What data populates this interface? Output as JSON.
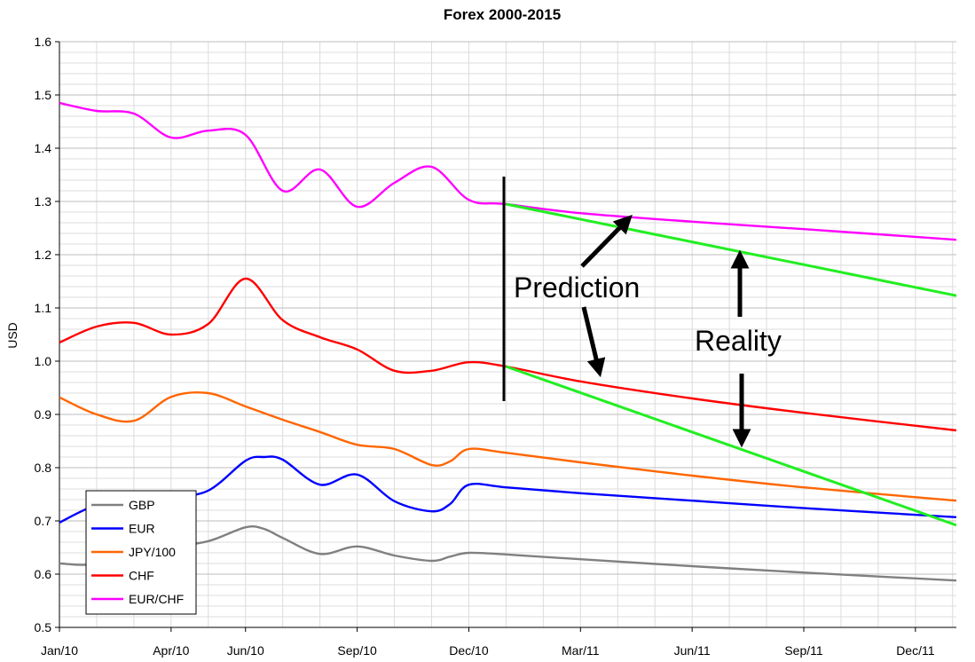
{
  "chart_data": {
    "type": "line",
    "title": "Forex 2000-2015",
    "ylabel": "USD",
    "xlabel": "",
    "ylim": [
      0.5,
      1.6
    ],
    "yticks": [
      "0.5",
      "0.6",
      "0.7",
      "0.8",
      "0.9",
      "1.0",
      "1.1",
      "1.2",
      "1.3",
      "1.4",
      "1.5",
      "1.6"
    ],
    "x_tick_labels": [
      "Jan/10",
      "Apr/10",
      "Jun/10",
      "Sep/10",
      "Dec/10",
      "Mar/11",
      "Jun/11",
      "Sep/11",
      "Dec/11"
    ],
    "x_tick_months": [
      0,
      3,
      5,
      8,
      11,
      14,
      17,
      20,
      23
    ],
    "xlim_months": [
      0,
      24.1
    ],
    "grid": true,
    "legend_position": "bottom-left",
    "series": [
      {
        "name": "GBP",
        "color": "#808080",
        "x": [
          0,
          1,
          2,
          3,
          4,
          5,
          5.5,
          6,
          7,
          8,
          9,
          10,
          10.5,
          11,
          12,
          14,
          17,
          20,
          24.1
        ],
        "values": [
          0.62,
          0.62,
          0.655,
          0.653,
          0.662,
          0.688,
          0.685,
          0.668,
          0.638,
          0.652,
          0.635,
          0.625,
          0.633,
          0.64,
          0.637,
          0.628,
          0.615,
          0.603,
          0.588
        ]
      },
      {
        "name": "EUR",
        "color": "#0000ff",
        "x": [
          0,
          1,
          2,
          3,
          4,
          5,
          5.5,
          6,
          7,
          8,
          9,
          10,
          10.5,
          11,
          12,
          14,
          17,
          20,
          24.1
        ],
        "values": [
          0.697,
          0.73,
          0.74,
          0.745,
          0.757,
          0.813,
          0.82,
          0.815,
          0.768,
          0.787,
          0.737,
          0.718,
          0.732,
          0.768,
          0.763,
          0.752,
          0.738,
          0.724,
          0.707
        ]
      },
      {
        "name": "JPY/100",
        "color": "#ff6600",
        "x": [
          0,
          1,
          2,
          3,
          4,
          5,
          6,
          7,
          8,
          9,
          10,
          10.5,
          11,
          12,
          14,
          17,
          20,
          24.1
        ],
        "values": [
          0.932,
          0.9,
          0.888,
          0.933,
          0.94,
          0.915,
          0.89,
          0.867,
          0.843,
          0.835,
          0.805,
          0.812,
          0.835,
          0.828,
          0.81,
          0.785,
          0.763,
          0.738
        ]
      },
      {
        "name": "CHF",
        "color": "#ff0000",
        "x": [
          0,
          1,
          2,
          3,
          4,
          5,
          6,
          7,
          8,
          9,
          10,
          11,
          12,
          14,
          17,
          20,
          24.1
        ],
        "values": [
          1.035,
          1.065,
          1.072,
          1.05,
          1.07,
          1.155,
          1.077,
          1.045,
          1.022,
          0.982,
          0.982,
          0.998,
          0.99,
          0.962,
          0.93,
          0.903,
          0.87
        ]
      },
      {
        "name": "EUR/CHF",
        "color": "#ff00ff",
        "x": [
          0,
          1,
          2,
          3,
          4,
          5,
          6,
          7,
          8,
          9,
          10,
          11,
          12,
          14,
          17,
          20,
          24.1
        ],
        "values": [
          1.485,
          1.47,
          1.465,
          1.42,
          1.433,
          1.425,
          1.32,
          1.36,
          1.29,
          1.335,
          1.365,
          1.303,
          1.295,
          1.278,
          1.262,
          1.248,
          1.228
        ]
      }
    ],
    "prediction_lines": [
      {
        "x": [
          12,
          24.1
        ],
        "values": [
          1.295,
          1.123
        ]
      },
      {
        "x": [
          12,
          24.1
        ],
        "values": [
          0.99,
          0.692
        ]
      }
    ],
    "annotations": [
      {
        "text": "Prediction"
      },
      {
        "text": "Reality"
      }
    ]
  },
  "colors": {
    "grid_major": "#bdbdbd",
    "grid_minor": "#dcdcdc",
    "prediction": "#22ee22"
  }
}
